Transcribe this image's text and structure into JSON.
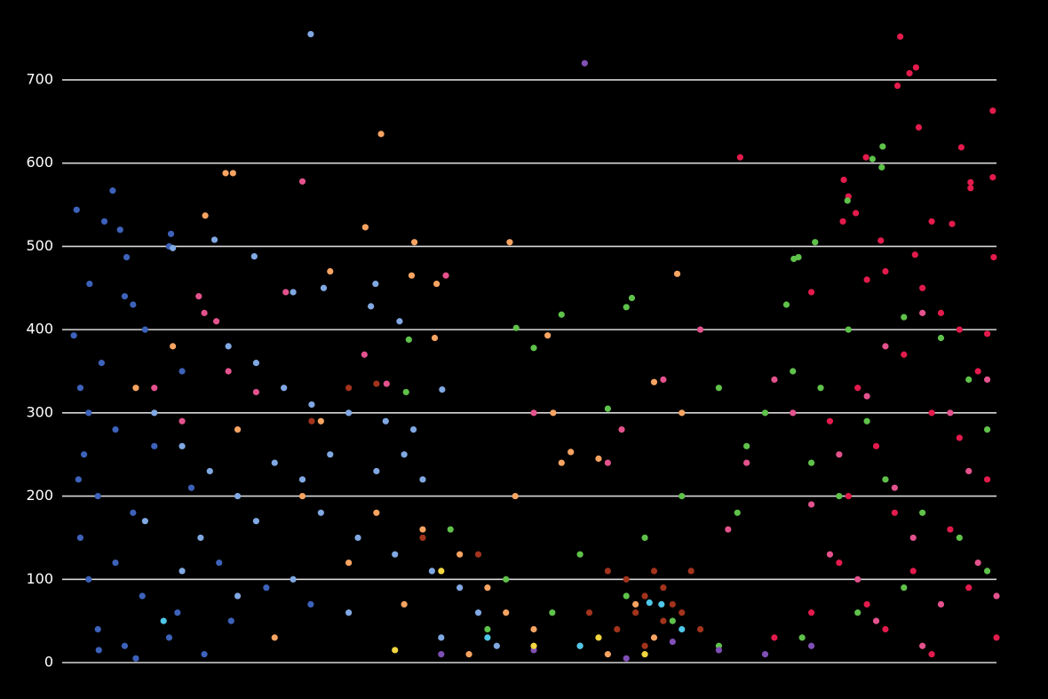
{
  "chart_data": {
    "type": "scatter",
    "grid": true,
    "xlim": [
      0,
      100
    ],
    "ylim": [
      0,
      780
    ],
    "yticks": [
      0,
      100,
      200,
      300,
      400,
      500,
      600,
      700
    ],
    "series": [
      {
        "color": "#3d62ba",
        "x": [
          0.6,
          4.5,
          3.6,
          5.3,
          6,
          2,
          5.8,
          6.7,
          0.3,
          3.3,
          1,
          1.9,
          4.8,
          1.4,
          0.8,
          2.9,
          6.7,
          1,
          4.8,
          1.9,
          7.7,
          11.5,
          2.9,
          5.8,
          14.4,
          17.3,
          21.1,
          25.9,
          10.6,
          10.6,
          10.8,
          8,
          12,
          9,
          13,
          3,
          7,
          16
        ],
        "values": [
          544,
          567,
          530,
          520,
          487,
          455,
          440,
          430,
          393,
          360,
          330,
          300,
          280,
          250,
          220,
          200,
          180,
          150,
          120,
          100,
          80,
          60,
          40,
          20,
          10,
          50,
          90,
          70,
          30,
          500,
          515,
          400,
          350,
          260,
          210,
          15,
          5,
          120
        ]
      },
      {
        "color": "#80a8e2",
        "x": [
          25.9,
          15.5,
          11,
          19.8,
          24,
          27.3,
          32.9,
          32.4,
          35.5,
          40.1,
          17,
          20,
          23,
          26,
          30,
          34,
          37,
          36,
          38,
          33,
          28,
          25,
          22,
          18,
          15,
          12,
          9,
          14,
          20,
          27,
          31,
          35,
          39,
          42,
          44,
          24,
          18,
          12,
          30,
          40,
          46,
          8
        ],
        "values": [
          755,
          508,
          498,
          488,
          445,
          450,
          455,
          428,
          410,
          328,
          380,
          360,
          330,
          310,
          300,
          290,
          280,
          250,
          220,
          230,
          250,
          220,
          240,
          200,
          230,
          260,
          300,
          150,
          170,
          180,
          150,
          130,
          110,
          90,
          60,
          100,
          80,
          110,
          60,
          30,
          20,
          170
        ]
      },
      {
        "color": "#e4528d",
        "x": [
          14.4,
          13.8,
          15.7,
          25,
          23.2,
          31.7,
          34.1,
          40.5,
          20,
          17,
          9,
          12,
          50,
          58,
          59.5,
          64,
          68,
          73,
          71,
          76,
          78,
          80,
          83,
          86,
          89,
          82,
          88,
          92,
          95,
          97,
          99,
          91,
          85,
          94,
          98,
          100,
          87,
          92
        ],
        "values": [
          420,
          440,
          410,
          578,
          445,
          370,
          335,
          465,
          325,
          350,
          330,
          290,
          300,
          240,
          280,
          340,
          400,
          240,
          160,
          340,
          300,
          190,
          250,
          320,
          210,
          130,
          380,
          420,
          300,
          230,
          340,
          150,
          100,
          70,
          120,
          80,
          50,
          20
        ]
      },
      {
        "color": "#e31b4c",
        "x": [
          89.6,
          91.3,
          90.6,
          89.3,
          91.6,
          96.2,
          97.2,
          97.2,
          99.6,
          99.6,
          99.7,
          93,
          95.2,
          85.9,
          72.3,
          83.5,
          84,
          84.8,
          83.4,
          87.5,
          91.2,
          88,
          86,
          80,
          92,
          94,
          96,
          99,
          98,
          90,
          85,
          82,
          87,
          93,
          96,
          99,
          89,
          84,
          95,
          91,
          97,
          86,
          80,
          100,
          93,
          88,
          76,
          83
        ],
        "values": [
          752,
          715,
          708,
          693,
          643,
          619,
          570,
          577,
          663,
          583,
          487,
          530,
          527,
          607,
          607,
          580,
          560,
          540,
          530,
          507,
          490,
          470,
          460,
          445,
          450,
          420,
          400,
          395,
          350,
          370,
          330,
          290,
          260,
          300,
          270,
          220,
          180,
          200,
          160,
          110,
          90,
          70,
          60,
          30,
          10,
          40,
          30,
          120
        ]
      },
      {
        "color": "#5fc24a",
        "x": [
          86.6,
          87.7,
          87.6,
          83.9,
          78.1,
          78.6,
          80.4,
          77.3,
          60.6,
          60,
          53,
          50,
          48.1,
          36.5,
          36.2,
          58,
          70,
          73,
          75,
          78,
          81,
          84,
          90,
          94,
          97,
          99,
          86,
          80,
          83,
          88,
          92,
          96,
          99,
          90,
          85,
          79,
          70,
          65,
          60,
          55,
          52,
          47,
          45,
          66,
          72,
          62,
          41
        ],
        "values": [
          605,
          620,
          595,
          555,
          485,
          487,
          505,
          430,
          438,
          427,
          418,
          378,
          402,
          388,
          325,
          305,
          330,
          260,
          300,
          350,
          330,
          400,
          415,
          390,
          340,
          280,
          290,
          240,
          200,
          220,
          180,
          150,
          110,
          90,
          60,
          30,
          20,
          50,
          80,
          130,
          60,
          100,
          40,
          200,
          180,
          150,
          160
        ]
      },
      {
        "color": "#f7a462",
        "x": [
          16.7,
          17.5,
          14.5,
          33.5,
          28,
          31.8,
          37.1,
          36.8,
          39.3,
          39.5,
          47.4,
          51.5,
          65.5,
          52.1,
          54,
          57,
          63,
          66,
          7,
          11,
          18,
          27,
          33,
          38,
          42,
          45,
          47,
          50,
          55,
          43,
          36,
          30,
          25,
          63,
          58,
          48,
          53,
          61,
          22
        ],
        "values": [
          588,
          588,
          537,
          635,
          470,
          523,
          505,
          465,
          390,
          455,
          505,
          393,
          467,
          300,
          253,
          245,
          337,
          300,
          330,
          380,
          280,
          290,
          180,
          160,
          130,
          90,
          60,
          40,
          20,
          10,
          70,
          120,
          200,
          30,
          10,
          200,
          240,
          70,
          30
        ]
      },
      {
        "color": "#a3331c",
        "x": [
          58,
          60,
          62,
          63,
          64,
          65,
          66,
          67,
          64,
          61,
          59,
          56,
          68,
          62,
          30,
          33,
          26,
          38,
          44
        ],
        "values": [
          110,
          100,
          80,
          110,
          90,
          70,
          60,
          110,
          50,
          60,
          40,
          60,
          40,
          20,
          330,
          335,
          290,
          150,
          130
        ]
      },
      {
        "color": "#7f4fb5",
        "x": [
          55.5,
          65,
          70,
          75,
          80,
          40,
          50,
          60
        ],
        "values": [
          720,
          25,
          15,
          10,
          20,
          10,
          15,
          5
        ]
      },
      {
        "color": "#4fc7e8",
        "x": [
          63.8,
          62.5,
          45,
          55,
          66,
          10
        ],
        "values": [
          70,
          72,
          30,
          20,
          40,
          50
        ]
      },
      {
        "color": "#f2d640",
        "x": [
          40,
          50,
          57,
          35,
          62
        ],
        "values": [
          110,
          20,
          30,
          15,
          10
        ]
      }
    ]
  }
}
